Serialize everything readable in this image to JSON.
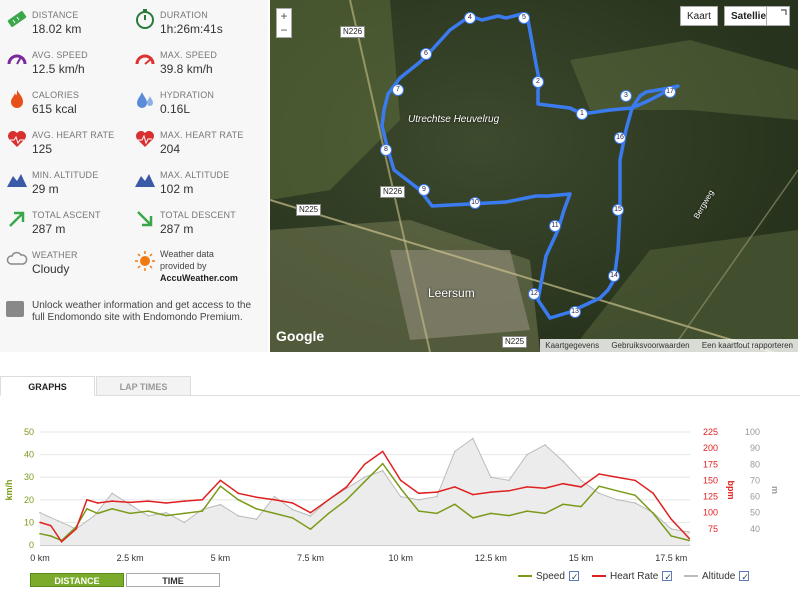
{
  "stats": {
    "distance": {
      "label": "DISTANCE",
      "value": "18.02 km"
    },
    "duration": {
      "label": "DURATION",
      "value": "1h:26m:41s"
    },
    "avg_speed": {
      "label": "AVG. SPEED",
      "value": "12.5 km/h"
    },
    "max_speed": {
      "label": "MAX. SPEED",
      "value": "39.8 km/h"
    },
    "calories": {
      "label": "CALORIES",
      "value": "615 kcal"
    },
    "hydration": {
      "label": "HYDRATION",
      "value": "0.16L"
    },
    "avg_hr": {
      "label": "AVG. HEART RATE",
      "value": "125"
    },
    "max_hr": {
      "label": "MAX. HEART RATE",
      "value": "204"
    },
    "min_alt": {
      "label": "MIN. ALTITUDE",
      "value": "29 m"
    },
    "max_alt": {
      "label": "MAX. ALTITUDE",
      "value": "102 m"
    },
    "ascent": {
      "label": "TOTAL ASCENT",
      "value": "287 m"
    },
    "descent": {
      "label": "TOTAL DESCENT",
      "value": "287 m"
    },
    "weather": {
      "label": "WEATHER",
      "value": "Cloudy"
    },
    "weather_source": {
      "line1": "Weather data",
      "line2": "provided by",
      "brand": "AccuWeather.com"
    }
  },
  "unlock": {
    "text": "Unlock weather information and get access to the full Endomondo site with Endomondo Premium."
  },
  "map": {
    "btn_map": "Kaart",
    "btn_satellite": "Satelliet",
    "zoom_in": "+",
    "zoom_out": "−",
    "labels": {
      "n226_top": "N226",
      "n226_mid": "N226",
      "n225_left": "N225",
      "n225_bottom": "N225",
      "bergweg": "Bergweg",
      "heuvelrug": "Utrechtse Heuvelrug",
      "leersum": "Leersum"
    },
    "google": "Google",
    "footer": [
      "Kaartgegevens",
      "Gebruiksvoorwaarden",
      "Een kaartfout rapporteren"
    ],
    "markers": [
      "1",
      "2",
      "3",
      "4",
      "5",
      "6",
      "7",
      "8",
      "9",
      "10",
      "11",
      "12",
      "13",
      "14",
      "15",
      "16",
      "17"
    ]
  },
  "tabs": {
    "graphs": "GRAPHS",
    "laps": "LAP TIMES"
  },
  "toggle": {
    "distance": "DISTANCE",
    "time": "TIME"
  },
  "legend": {
    "speed": "Speed",
    "hr": "Heart Rate",
    "alt": "Altitude"
  },
  "colors": {
    "speed": "#7a9a1a",
    "hr": "#e02020",
    "alt": "#bbbbbb",
    "route": "#3b7bf0"
  },
  "chart_data": {
    "type": "line",
    "xlabel": "km",
    "x_ticks": [
      "0 km",
      "2.5 km",
      "5 km",
      "7.5 km",
      "10 km",
      "12.5 km",
      "15 km",
      "17.5 km"
    ],
    "x_tick_values": [
      0,
      2.5,
      5,
      7.5,
      10,
      12.5,
      15,
      17.5
    ],
    "xlim": [
      0,
      18.02
    ],
    "axes": {
      "speed": {
        "label": "km/h",
        "ticks": [
          0,
          10,
          20,
          30,
          40,
          50
        ],
        "lim": [
          0,
          50
        ]
      },
      "hr": {
        "label": "bpm",
        "ticks": [
          75,
          100,
          125,
          150,
          175,
          200,
          225
        ],
        "lim": [
          50,
          225
        ]
      },
      "alt": {
        "label": "m",
        "ticks": [
          40,
          50,
          60,
          70,
          80,
          90,
          100
        ],
        "lim": [
          30,
          100
        ]
      }
    },
    "series": [
      {
        "name": "Speed",
        "axis": "speed",
        "x": [
          0,
          0.3,
          0.6,
          1,
          1.3,
          1.6,
          2,
          2.5,
          3,
          3.5,
          4,
          4.5,
          5,
          5.5,
          6,
          6.5,
          7,
          7.5,
          8,
          8.5,
          9,
          9.5,
          10,
          10.5,
          11,
          11.5,
          12,
          12.5,
          13,
          13.5,
          14,
          14.5,
          15,
          15.5,
          16,
          16.5,
          17,
          17.5,
          18
        ],
        "values": [
          5,
          4,
          2,
          8,
          16,
          14,
          16,
          14,
          15,
          13,
          14,
          15,
          26,
          20,
          16,
          14,
          12,
          7,
          14,
          20,
          28,
          36,
          25,
          15,
          14,
          18,
          12,
          14,
          13,
          15,
          14,
          18,
          17,
          26,
          24,
          22,
          14,
          4,
          2
        ]
      },
      {
        "name": "Heart Rate",
        "axis": "hr",
        "x": [
          0,
          0.3,
          0.6,
          1,
          1.3,
          1.6,
          2,
          2.5,
          3,
          3.5,
          4,
          4.5,
          5,
          5.5,
          6,
          6.5,
          7,
          7.5,
          8,
          8.5,
          9,
          9.5,
          10,
          10.5,
          11,
          11.5,
          12,
          12.5,
          13,
          13.5,
          14,
          14.5,
          15,
          15.5,
          16,
          16.5,
          17,
          17.5,
          18
        ],
        "values": [
          85,
          80,
          55,
          75,
          120,
          115,
          118,
          116,
          118,
          115,
          118,
          120,
          150,
          130,
          124,
          120,
          115,
          100,
          120,
          140,
          175,
          195,
          150,
          130,
          132,
          140,
          128,
          132,
          134,
          140,
          138,
          145,
          140,
          160,
          155,
          150,
          130,
          90,
          60
        ]
      },
      {
        "name": "Altitude",
        "axis": "alt",
        "x": [
          0,
          0.5,
          1,
          1.5,
          2,
          2.5,
          3,
          3.5,
          4,
          4.5,
          5,
          5.5,
          6,
          6.5,
          7,
          7.5,
          8,
          8.5,
          9,
          9.5,
          10,
          10.5,
          11,
          11.5,
          12,
          12.5,
          13,
          13.5,
          14,
          14.5,
          15,
          15.5,
          16,
          16.5,
          17,
          17.5,
          18
        ],
        "values": [
          50,
          45,
          40,
          48,
          62,
          55,
          48,
          50,
          44,
          52,
          55,
          48,
          46,
          60,
          52,
          48,
          58,
          65,
          72,
          76,
          60,
          58,
          60,
          88,
          96,
          72,
          70,
          86,
          92,
          82,
          70,
          62,
          58,
          56,
          50,
          40,
          38
        ]
      }
    ]
  }
}
